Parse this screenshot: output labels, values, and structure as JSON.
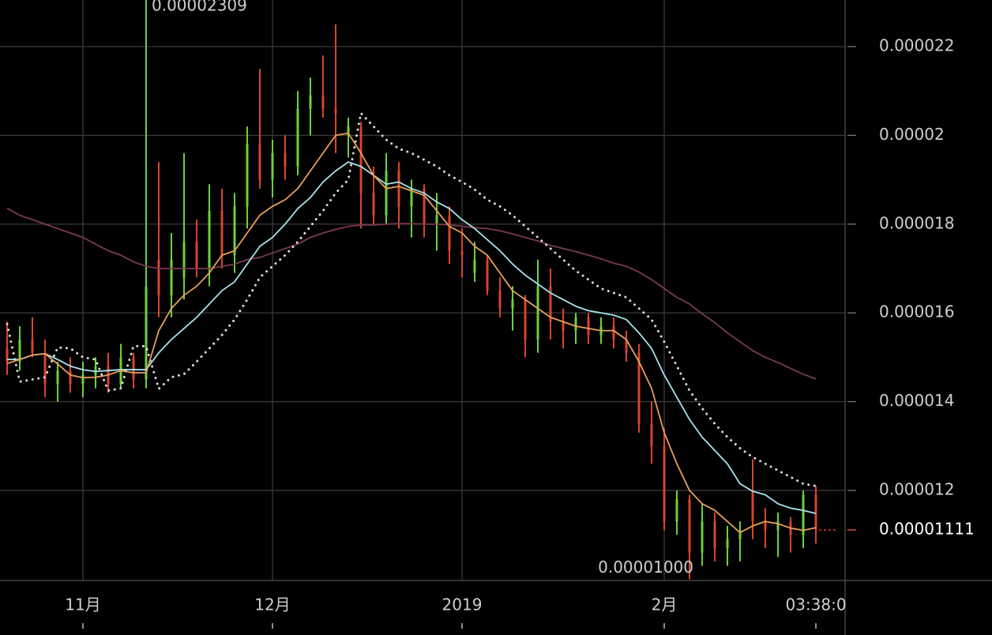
{
  "chart_data": {
    "type": "candlestick",
    "categories": [
      null,
      null,
      null,
      null,
      null,
      null,
      "11月",
      null,
      null,
      null,
      null,
      null,
      null,
      null,
      null,
      null,
      null,
      null,
      null,
      null,
      null,
      "12月",
      null,
      null,
      null,
      null,
      null,
      null,
      null,
      null,
      null,
      null,
      null,
      null,
      null,
      null,
      "2019",
      null,
      null,
      null,
      null,
      null,
      null,
      null,
      null,
      null,
      null,
      null,
      null,
      null,
      null,
      null,
      "2月",
      null,
      null,
      null,
      null,
      null,
      null,
      null,
      null,
      null,
      null,
      null,
      "03:38:0"
    ],
    "open": [
      1.52e-05,
      1.49e-05,
      1.54e-05,
      1.51e-05,
      1.44e-05,
      1.47e-05,
      1.44e-05,
      1.46e-05,
      1.48e-05,
      1.44e-05,
      1.5e-05,
      1.45e-05,
      1.72e-05,
      1.64e-05,
      1.68e-05,
      1.76e-05,
      1.7e-05,
      1.83e-05,
      1.73e-05,
      1.84e-05,
      1.98e-05,
      1.9e-05,
      1.96e-05,
      1.93e-05,
      2.06e-05,
      2.09e-05,
      2.06e-05,
      2e-05,
      2.02e-05,
      1.87e-05,
      1.82e-05,
      1.92e-05,
      1.84e-05,
      1.88e-05,
      1.8e-05,
      1.82e-05,
      1.74e-05,
      1.69e-05,
      1.72e-05,
      1.65e-05,
      1.61e-05,
      1.63e-05,
      1.54e-05,
      1.66e-05,
      1.58e-05,
      1.56e-05,
      1.59e-05,
      1.55e-05,
      1.57e-05,
      1.54e-05,
      1.51e-05,
      1.35e-05,
      1.3e-05,
      1.13e-05,
      1.18e-05,
      1.06e-05,
      1.13e-05,
      1.07e-05,
      1.09e-05,
      1.2e-05,
      1.13e-05,
      1.11e-05,
      1.13e-05,
      1.1e-05,
      1.19e-05
    ],
    "high": [
      1.58e-05,
      1.57e-05,
      1.59e-05,
      1.54e-05,
      1.49e-05,
      1.5e-05,
      1.49e-05,
      1.5e-05,
      1.51e-05,
      1.53e-05,
      1.51e-05,
      2.309e-05,
      1.94e-05,
      1.78e-05,
      1.96e-05,
      1.81e-05,
      1.89e-05,
      1.88e-05,
      1.87e-05,
      2.02e-05,
      2.15e-05,
      1.99e-05,
      2e-05,
      2.1e-05,
      2.13e-05,
      2.18e-05,
      2.25e-05,
      2.04e-05,
      2.03e-05,
      1.93e-05,
      1.96e-05,
      1.94e-05,
      1.9e-05,
      1.89e-05,
      1.87e-05,
      1.84e-05,
      1.79e-05,
      1.76e-05,
      1.73e-05,
      1.68e-05,
      1.66e-05,
      1.64e-05,
      1.72e-05,
      1.7e-05,
      1.61e-05,
      1.6e-05,
      1.6e-05,
      1.59e-05,
      1.59e-05,
      1.56e-05,
      1.53e-05,
      1.4e-05,
      1.34e-05,
      1.2e-05,
      1.19e-05,
      1.17e-05,
      1.15e-05,
      1.12e-05,
      1.13e-05,
      1.27e-05,
      1.16e-05,
      1.15e-05,
      1.14e-05,
      1.2e-05,
      1.21e-05
    ],
    "low": [
      1.46e-05,
      1.47e-05,
      1.5e-05,
      1.41e-05,
      1.4e-05,
      1.42e-05,
      1.41e-05,
      1.43e-05,
      1.42e-05,
      1.43e-05,
      1.43e-05,
      1.43e-05,
      1.59e-05,
      1.59e-05,
      1.63e-05,
      1.68e-05,
      1.66e-05,
      1.7e-05,
      1.69e-05,
      1.79e-05,
      1.88e-05,
      1.86e-05,
      1.9e-05,
      1.91e-05,
      2e-05,
      2.04e-05,
      1.96e-05,
      1.95e-05,
      1.79e-05,
      1.8e-05,
      1.8e-05,
      1.79e-05,
      1.77e-05,
      1.77e-05,
      1.74e-05,
      1.71e-05,
      1.68e-05,
      1.67e-05,
      1.64e-05,
      1.59e-05,
      1.56e-05,
      1.5e-05,
      1.51e-05,
      1.54e-05,
      1.52e-05,
      1.53e-05,
      1.53e-05,
      1.53e-05,
      1.52e-05,
      1.49e-05,
      1.33e-05,
      1.26e-05,
      1.11e-05,
      1.1e-05,
      1e-05,
      1.03e-05,
      1.04e-05,
      1.03e-05,
      1.04e-05,
      1.09e-05,
      1.07e-05,
      1.05e-05,
      1.06e-05,
      1.07e-05,
      1.08e-05
    ],
    "close": [
      1.49e-05,
      1.54e-05,
      1.51e-05,
      1.44e-05,
      1.47e-05,
      1.44e-05,
      1.46e-05,
      1.48e-05,
      1.44e-05,
      1.5e-05,
      1.45e-05,
      1.66e-05,
      1.64e-05,
      1.72e-05,
      1.76e-05,
      1.7e-05,
      1.83e-05,
      1.73e-05,
      1.84e-05,
      1.98e-05,
      1.9e-05,
      1.96e-05,
      1.93e-05,
      2.06e-05,
      2.09e-05,
      2.06e-05,
      2.05e-05,
      2.02e-05,
      1.87e-05,
      1.82e-05,
      1.92e-05,
      1.84e-05,
      1.88e-05,
      1.8e-05,
      1.82e-05,
      1.74e-05,
      1.73e-05,
      1.72e-05,
      1.65e-05,
      1.61e-05,
      1.63e-05,
      1.54e-05,
      1.66e-05,
      1.58e-05,
      1.56e-05,
      1.59e-05,
      1.55e-05,
      1.57e-05,
      1.54e-05,
      1.51e-05,
      1.35e-05,
      1.3e-05,
      1.13e-05,
      1.18e-05,
      1.06e-05,
      1.13e-05,
      1.07e-05,
      1.09e-05,
      1.11e-05,
      1.13e-05,
      1.11e-05,
      1.13e-05,
      1.1e-05,
      1.19e-05,
      1.111e-05
    ],
    "up_color": "#6cd13c",
    "down_color": "#d9452a",
    "lines": [
      {
        "color": "#7b3a4f",
        "dash": false,
        "values": [
          1.836e-05,
          1.82e-05,
          1.81e-05,
          1.8e-05,
          1.79e-05,
          1.78e-05,
          1.77e-05,
          1.755e-05,
          1.74e-05,
          1.73e-05,
          1.715e-05,
          1.705e-05,
          1.7e-05,
          1.7e-05,
          1.7e-05,
          1.7e-05,
          1.7e-05,
          1.705e-05,
          1.71e-05,
          1.72e-05,
          1.725e-05,
          1.735e-05,
          1.745e-05,
          1.755e-05,
          1.77e-05,
          1.78e-05,
          1.788e-05,
          1.795e-05,
          1.798e-05,
          1.798e-05,
          1.8e-05,
          1.801e-05,
          1.801e-05,
          1.8e-05,
          1.8e-05,
          1.798e-05,
          1.795e-05,
          1.792e-05,
          1.79e-05,
          1.785e-05,
          1.778e-05,
          1.77e-05,
          1.762e-05,
          1.752e-05,
          1.745e-05,
          1.738e-05,
          1.73e-05,
          1.722e-05,
          1.712e-05,
          1.705e-05,
          1.692e-05,
          1.675e-05,
          1.655e-05,
          1.635e-05,
          1.62e-05,
          1.598e-05,
          1.578e-05,
          1.555e-05,
          1.535e-05,
          1.515e-05,
          1.5e-05,
          1.488e-05,
          1.475e-05,
          1.462e-05,
          1.451e-05
        ]
      },
      {
        "color": "#d8d8d8",
        "dash": true,
        "values": [
          1.575e-05,
          1.445e-05,
          1.45e-05,
          1.455e-05,
          1.522e-05,
          1.52e-05,
          1.5e-05,
          1.495e-05,
          1.425e-05,
          1.43e-05,
          1.525e-05,
          1.525e-05,
          1.429e-05,
          1.455e-05,
          1.462e-05,
          1.49e-05,
          1.52e-05,
          1.55e-05,
          1.585e-05,
          1.63e-05,
          1.68e-05,
          1.705e-05,
          1.73e-05,
          1.76e-05,
          1.795e-05,
          1.83e-05,
          1.87e-05,
          1.9e-05,
          2.05e-05,
          2.02e-05,
          1.99e-05,
          1.97e-05,
          1.96e-05,
          1.945e-05,
          1.93e-05,
          1.91e-05,
          1.895e-05,
          1.878e-05,
          1.855e-05,
          1.84e-05,
          1.82e-05,
          1.795e-05,
          1.77e-05,
          1.745e-05,
          1.72e-05,
          1.695e-05,
          1.675e-05,
          1.655e-05,
          1.645e-05,
          1.635e-05,
          1.61e-05,
          1.585e-05,
          1.535e-05,
          1.48e-05,
          1.425e-05,
          1.385e-05,
          1.35e-05,
          1.32e-05,
          1.295e-05,
          1.275e-05,
          1.26e-05,
          1.245e-05,
          1.23e-05,
          1.215e-05,
          1.21e-05
        ]
      },
      {
        "color": "#a6e3ec",
        "dash": false,
        "values": [
          1.495e-05,
          1.495e-05,
          1.505e-05,
          1.508e-05,
          1.495e-05,
          1.48e-05,
          1.472e-05,
          1.468e-05,
          1.47e-05,
          1.472e-05,
          1.472e-05,
          1.472e-05,
          1.51e-05,
          1.54e-05,
          1.565e-05,
          1.59e-05,
          1.62e-05,
          1.65e-05,
          1.67e-05,
          1.71e-05,
          1.75e-05,
          1.77e-05,
          1.8e-05,
          1.835e-05,
          1.86e-05,
          1.895e-05,
          1.92e-05,
          1.94e-05,
          1.93e-05,
          1.91e-05,
          1.89e-05,
          1.895e-05,
          1.88e-05,
          1.87e-05,
          1.85e-05,
          1.835e-05,
          1.81e-05,
          1.79e-05,
          1.765e-05,
          1.74e-05,
          1.71e-05,
          1.685e-05,
          1.665e-05,
          1.645e-05,
          1.63e-05,
          1.615e-05,
          1.605e-05,
          1.6e-05,
          1.595e-05,
          1.585e-05,
          1.555e-05,
          1.52e-05,
          1.46e-05,
          1.41e-05,
          1.36e-05,
          1.32e-05,
          1.29e-05,
          1.26e-05,
          1.215e-05,
          1.198e-05,
          1.19e-05,
          1.17e-05,
          1.16e-05,
          1.155e-05,
          1.148e-05
        ]
      },
      {
        "color": "#e8a05a",
        "dash": false,
        "values": [
          1.486e-05,
          1.495e-05,
          1.505e-05,
          1.508e-05,
          1.485e-05,
          1.46e-05,
          1.454e-05,
          1.455e-05,
          1.46e-05,
          1.47e-05,
          1.465e-05,
          1.465e-05,
          1.56e-05,
          1.61e-05,
          1.64e-05,
          1.66e-05,
          1.69e-05,
          1.73e-05,
          1.74e-05,
          1.78e-05,
          1.82e-05,
          1.84e-05,
          1.855e-05,
          1.88e-05,
          1.92e-05,
          1.96e-05,
          2e-05,
          2.005e-05,
          1.96e-05,
          1.91e-05,
          1.88e-05,
          1.885e-05,
          1.875e-05,
          1.865e-05,
          1.83e-05,
          1.795e-05,
          1.78e-05,
          1.75e-05,
          1.73e-05,
          1.69e-05,
          1.65e-05,
          1.63e-05,
          1.61e-05,
          1.59e-05,
          1.58e-05,
          1.57e-05,
          1.565e-05,
          1.56e-05,
          1.56e-05,
          1.54e-05,
          1.49e-05,
          1.43e-05,
          1.33e-05,
          1.26e-05,
          1.2e-05,
          1.17e-05,
          1.155e-05,
          1.13e-05,
          1.105e-05,
          1.12e-05,
          1.13e-05,
          1.125e-05,
          1.115e-05,
          1.11e-05,
          1.116e-05
        ]
      }
    ],
    "ylim": [
      9.97e-06,
      2.305e-05
    ],
    "yticks": [
      1.2e-05,
      1.4e-05,
      1.6e-05,
      1.8e-05,
      2e-05,
      2.2e-05
    ],
    "grid": true,
    "high_annotation": 2.309e-05,
    "low_annotation": {
      "value": 1e-05,
      "label": "0.00001000"
    },
    "last_price": 1.111e-05
  }
}
